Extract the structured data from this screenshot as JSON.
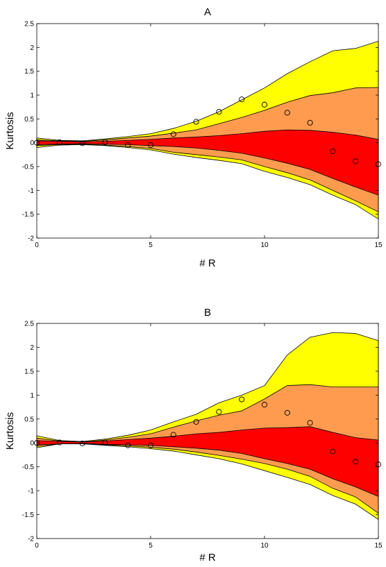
{
  "chart_data": [
    {
      "type": "area",
      "title": "A",
      "xlabel": "# R",
      "ylabel": "Kurtosis",
      "xlim": [
        0,
        15
      ],
      "ylim": [
        -2,
        2.5
      ],
      "xticks": [
        0,
        5,
        10,
        15
      ],
      "yticks": [
        -2,
        -1.5,
        -1,
        -0.5,
        0,
        0.5,
        1,
        1.5,
        2,
        2.5
      ],
      "grid": false,
      "legend": "none",
      "x": [
        0,
        1,
        2,
        3,
        4,
        5,
        6,
        7,
        8,
        9,
        10,
        11,
        12,
        13,
        14,
        15
      ],
      "bands": [
        {
          "color": "#ffff00",
          "upper": [
            0.1,
            0.05,
            0.04,
            0.08,
            0.13,
            0.19,
            0.3,
            0.45,
            0.65,
            0.9,
            1.15,
            1.45,
            1.7,
            1.93,
            1.98,
            2.13
          ],
          "lower": [
            -0.1,
            -0.05,
            -0.04,
            -0.06,
            -0.1,
            -0.15,
            -0.24,
            -0.31,
            -0.37,
            -0.44,
            -0.6,
            -0.73,
            -0.88,
            -1.1,
            -1.3,
            -1.6
          ]
        },
        {
          "color": "#ff9b4f",
          "upper": [
            0.06,
            0.04,
            0.03,
            0.06,
            0.1,
            0.14,
            0.2,
            0.27,
            0.4,
            0.53,
            0.68,
            0.85,
            0.99,
            1.05,
            1.15,
            1.16
          ],
          "lower": [
            -0.06,
            -0.04,
            -0.03,
            -0.05,
            -0.08,
            -0.12,
            -0.2,
            -0.25,
            -0.3,
            -0.36,
            -0.5,
            -0.63,
            -0.78,
            -1.0,
            -1.22,
            -1.45
          ]
        },
        {
          "color": "#ff0000",
          "upper": [
            0.04,
            0.03,
            0.02,
            0.03,
            0.05,
            0.07,
            0.1,
            0.12,
            0.15,
            0.19,
            0.24,
            0.27,
            0.26,
            0.22,
            0.16,
            0.07
          ],
          "lower": [
            -0.04,
            -0.03,
            -0.02,
            -0.03,
            -0.04,
            -0.06,
            -0.08,
            -0.11,
            -0.16,
            -0.22,
            -0.32,
            -0.43,
            -0.56,
            -0.75,
            -0.93,
            -1.1
          ]
        }
      ],
      "points": [
        0.0,
        0.01,
        -0.01,
        0.01,
        -0.05,
        -0.05,
        0.18,
        0.44,
        0.65,
        0.91,
        0.8,
        0.63,
        0.42,
        -0.18,
        -0.39,
        -0.45
      ]
    },
    {
      "type": "area",
      "title": "B",
      "xlabel": "# R",
      "ylabel": "Kurtosis",
      "xlim": [
        0,
        15
      ],
      "ylim": [
        -2,
        2.5
      ],
      "xticks": [
        0,
        5,
        10,
        15
      ],
      "yticks": [
        -2,
        -1.5,
        -1,
        -0.5,
        0,
        0.5,
        1,
        1.5,
        2,
        2.5
      ],
      "grid": false,
      "legend": "none",
      "x": [
        0,
        1,
        2,
        3,
        4,
        5,
        6,
        7,
        8,
        9,
        10,
        11,
        12,
        13,
        14,
        15
      ],
      "bands": [
        {
          "color": "#ffff00",
          "upper": [
            0.15,
            0.05,
            0.03,
            0.08,
            0.16,
            0.27,
            0.44,
            0.6,
            0.84,
            1.0,
            1.2,
            1.84,
            2.21,
            2.31,
            2.29,
            2.14
          ],
          "lower": [
            -0.1,
            -0.02,
            -0.02,
            -0.05,
            -0.08,
            -0.12,
            -0.17,
            -0.25,
            -0.33,
            -0.44,
            -0.58,
            -0.72,
            -0.87,
            -1.1,
            -1.28,
            -1.6
          ]
        },
        {
          "color": "#ff9b4f",
          "upper": [
            0.1,
            0.04,
            0.02,
            0.06,
            0.12,
            0.19,
            0.33,
            0.46,
            0.58,
            0.67,
            0.92,
            1.2,
            1.22,
            1.17,
            1.17,
            1.17
          ],
          "lower": [
            -0.07,
            -0.02,
            -0.02,
            -0.04,
            -0.06,
            -0.09,
            -0.13,
            -0.19,
            -0.26,
            -0.34,
            -0.43,
            -0.55,
            -0.7,
            -0.95,
            -1.13,
            -1.47
          ]
        },
        {
          "color": "#ff0000",
          "upper": [
            0.05,
            0.03,
            0.02,
            0.04,
            0.07,
            0.1,
            0.14,
            0.19,
            0.22,
            0.27,
            0.31,
            0.32,
            0.34,
            0.22,
            0.11,
            0.06
          ],
          "lower": [
            -0.04,
            -0.02,
            -0.01,
            -0.03,
            -0.04,
            -0.05,
            -0.08,
            -0.11,
            -0.15,
            -0.22,
            -0.33,
            -0.43,
            -0.55,
            -0.75,
            -0.92,
            -1.12
          ]
        }
      ],
      "points": [
        0.0,
        0.01,
        -0.01,
        0.01,
        -0.05,
        -0.05,
        0.17,
        0.44,
        0.65,
        0.91,
        0.8,
        0.63,
        0.42,
        -0.18,
        -0.39,
        -0.45
      ]
    }
  ]
}
